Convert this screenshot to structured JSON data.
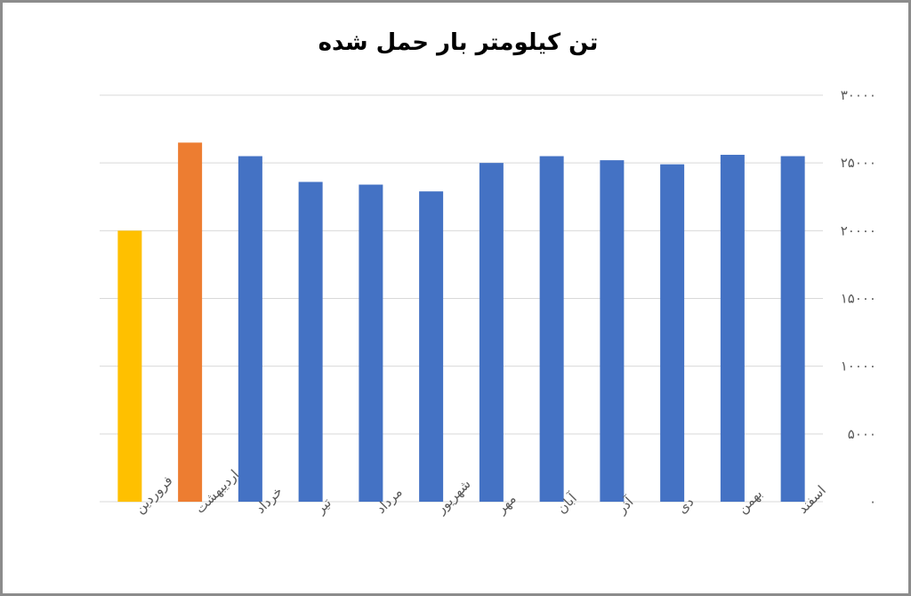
{
  "chart_data": {
    "type": "bar",
    "title": "تن کیلومتر بار حمل شده",
    "categories": [
      "فروردین",
      "اردیبهشت",
      "خرداد",
      "تیر",
      "مرداد",
      "شهریور",
      "مهر",
      "آبان",
      "آذر",
      "دی",
      "بهمن",
      "اسفند"
    ],
    "values": [
      20000,
      26500,
      25500,
      23600,
      23400,
      22900,
      25000,
      25500,
      25200,
      24900,
      25600,
      25500
    ],
    "bar_colors": [
      "#FFC000",
      "#ED7D31",
      "#4472C4",
      "#4472C4",
      "#4472C4",
      "#4472C4",
      "#4472C4",
      "#4472C4",
      "#4472C4",
      "#4472C4",
      "#4472C4",
      "#4472C4"
    ],
    "ylim": [
      0,
      30000
    ],
    "yticks": [
      0,
      5000,
      10000,
      15000,
      20000,
      25000,
      30000
    ],
    "ytick_labels": [
      "۰",
      "۵۰۰۰",
      "۱۰۰۰۰",
      "۱۵۰۰۰",
      "۲۰۰۰۰",
      "۲۵۰۰۰",
      "۳۰۰۰۰"
    ],
    "xlabel": "",
    "ylabel": "",
    "grid": true,
    "axis_side": "right"
  }
}
